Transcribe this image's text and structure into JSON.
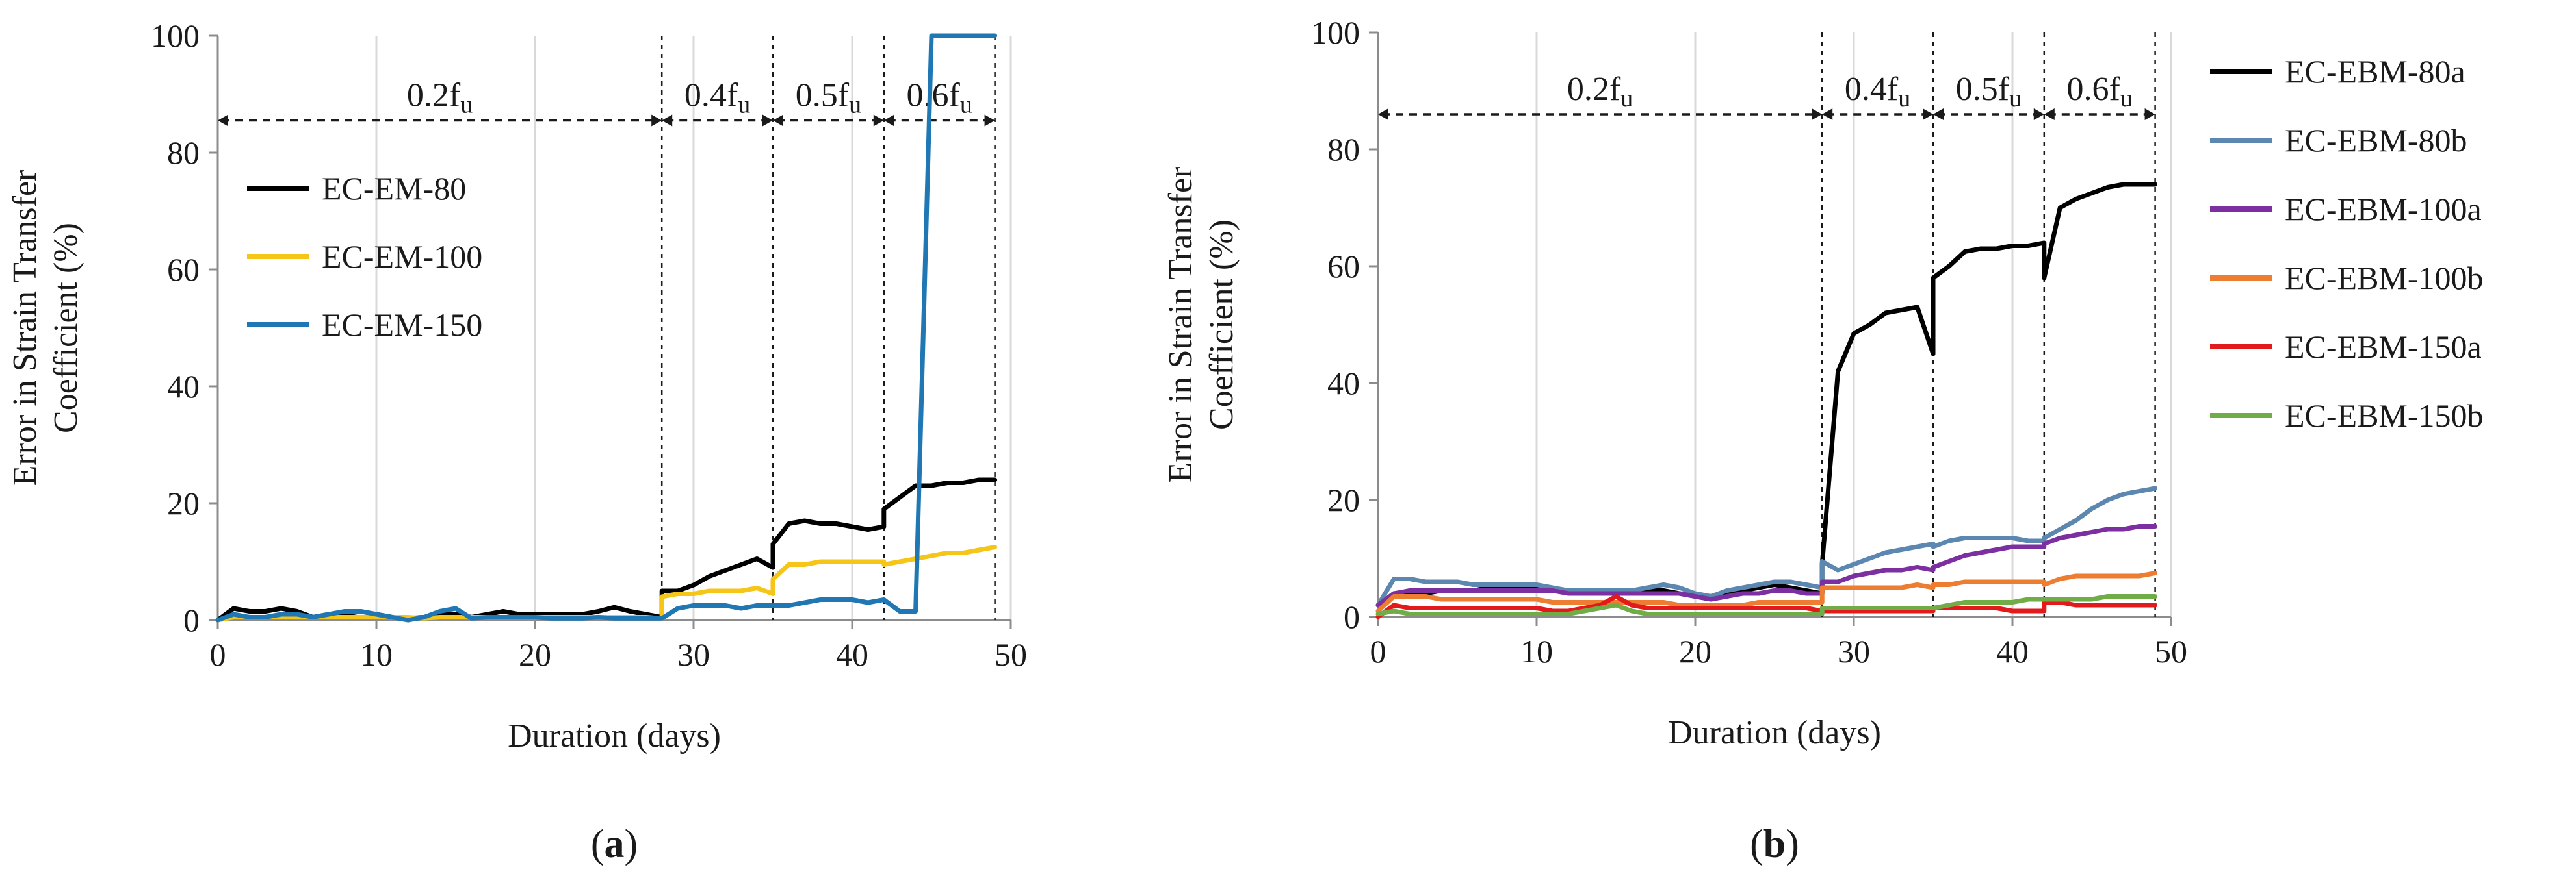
{
  "chart_data": [
    {
      "type": "line",
      "panel_label": "a",
      "xlabel": "Duration (days)",
      "ylabel_lines": [
        "Error in Strain Transfer",
        "Coefficient (%)"
      ],
      "xlim": [
        0,
        50
      ],
      "ylim": [
        0,
        100
      ],
      "xticks": [
        0,
        10,
        20,
        30,
        40,
        50
      ],
      "yticks": [
        0,
        20,
        40,
        60,
        80,
        100
      ],
      "grid": "vertical",
      "legend_position": "left",
      "phase_boundaries": [
        28,
        35,
        42,
        49
      ],
      "phases": [
        {
          "base": "0.2f",
          "sub": "u",
          "start": 0,
          "end": 28
        },
        {
          "base": "0.4f",
          "sub": "u",
          "start": 28,
          "end": 35
        },
        {
          "base": "0.5f",
          "sub": "u",
          "start": 35,
          "end": 42
        },
        {
          "base": "0.6f",
          "sub": "u",
          "start": 42,
          "end": 49
        }
      ],
      "phase_arrow_y": 85.5,
      "series": [
        {
          "name": "EC-EM-80",
          "color": "#000000",
          "x": [
            0,
            1,
            2,
            3,
            4,
            5,
            6,
            7,
            8,
            9,
            10,
            11,
            12,
            13,
            14,
            15,
            16,
            17,
            18,
            19,
            20,
            21,
            22,
            23,
            24,
            25,
            26,
            27,
            28,
            28,
            29,
            30,
            31,
            32,
            33,
            34,
            35,
            35,
            36,
            37,
            38,
            39,
            40,
            41,
            42,
            42,
            43,
            44,
            45,
            46,
            47,
            48,
            49
          ],
          "y": [
            0,
            2,
            1.5,
            1.5,
            2,
            1.5,
            0.5,
            1,
            1,
            1.5,
            1,
            0.5,
            0.3,
            0.5,
            1,
            1,
            0.5,
            1,
            1.5,
            1,
            1,
            1,
            1,
            1,
            1.5,
            2.2,
            1.5,
            1,
            0.5,
            5,
            5,
            6,
            7.5,
            8.5,
            9.5,
            10.5,
            9,
            13,
            16.5,
            17,
            16.5,
            16.5,
            16,
            15.5,
            16,
            19,
            21,
            23,
            23,
            23.5,
            23.5,
            24,
            24
          ]
        },
        {
          "name": "EC-EM-100",
          "color": "#f5c518",
          "x": [
            0,
            1,
            2,
            3,
            4,
            5,
            6,
            7,
            8,
            9,
            10,
            11,
            12,
            13,
            14,
            15,
            16,
            17,
            18,
            19,
            20,
            21,
            22,
            23,
            24,
            25,
            26,
            27,
            28,
            28,
            29,
            30,
            31,
            32,
            33,
            34,
            35,
            35,
            36,
            37,
            38,
            39,
            40,
            41,
            42,
            42,
            43,
            44,
            45,
            46,
            47,
            48,
            49
          ],
          "y": [
            0,
            0.5,
            0.5,
            0.5,
            0.5,
            0.5,
            0.5,
            0.5,
            0.5,
            0.5,
            0.5,
            0.5,
            0.5,
            0.3,
            0.5,
            0.5,
            0.5,
            0.5,
            0.5,
            0.5,
            0.5,
            0.5,
            0.5,
            0.5,
            0.5,
            0.5,
            0.5,
            0.5,
            0.3,
            4,
            4.5,
            4.5,
            5,
            5,
            5,
            5.5,
            4.5,
            7,
            9.5,
            9.5,
            10,
            10,
            10,
            10,
            10,
            9.5,
            10,
            10.5,
            11,
            11.5,
            11.5,
            12,
            12.5
          ]
        },
        {
          "name": "EC-EM-150",
          "color": "#1f77b4",
          "x": [
            0,
            1,
            2,
            3,
            4,
            5,
            6,
            7,
            8,
            9,
            10,
            11,
            12,
            13,
            14,
            15,
            16,
            17,
            18,
            19,
            20,
            21,
            22,
            23,
            24,
            25,
            26,
            27,
            28,
            29,
            30,
            31,
            32,
            33,
            34,
            35,
            36,
            37,
            38,
            39,
            40,
            41,
            42,
            43,
            44,
            45,
            46,
            47,
            48,
            49
          ],
          "y": [
            0,
            1,
            0.5,
            0.5,
            1,
            1,
            0.5,
            1,
            1.5,
            1.5,
            1,
            0.5,
            0,
            0.5,
            1.5,
            2,
            0.3,
            0.5,
            0.5,
            0.5,
            0.5,
            0.3,
            0.3,
            0.3,
            0.5,
            0.3,
            0.3,
            0.3,
            0.3,
            2,
            2.5,
            2.5,
            2.5,
            2,
            2.5,
            2.5,
            2.5,
            3,
            3.5,
            3.5,
            3.5,
            3,
            3.5,
            1.5,
            1.5,
            100,
            100,
            100,
            100,
            100
          ]
        }
      ]
    },
    {
      "type": "line",
      "panel_label": "b",
      "xlabel": "Duration (days)",
      "ylabel_lines": [
        "Error in Strain Transfer",
        "Coefficient (%)"
      ],
      "xlim": [
        0,
        50
      ],
      "ylim": [
        0,
        100
      ],
      "xticks": [
        0,
        10,
        20,
        30,
        40,
        50
      ],
      "yticks": [
        0,
        20,
        40,
        60,
        80,
        100
      ],
      "grid": "vertical",
      "legend_position": "right",
      "phase_boundaries": [
        28,
        35,
        42,
        49
      ],
      "phases": [
        {
          "base": "0.2f",
          "sub": "u",
          "start": 0,
          "end": 28
        },
        {
          "base": "0.4f",
          "sub": "u",
          "start": 28,
          "end": 35
        },
        {
          "base": "0.5f",
          "sub": "u",
          "start": 35,
          "end": 42
        },
        {
          "base": "0.6f",
          "sub": "u",
          "start": 42,
          "end": 49
        }
      ],
      "phase_arrow_y": 86,
      "series": [
        {
          "name": "EC-EBM-80a",
          "color": "#000000",
          "x": [
            0,
            1,
            2,
            3,
            4,
            5,
            6,
            7,
            8,
            9,
            10,
            11,
            12,
            13,
            14,
            15,
            16,
            17,
            18,
            19,
            20,
            21,
            22,
            23,
            24,
            25,
            26,
            27,
            28,
            28,
            29,
            30,
            31,
            32,
            33,
            34,
            35,
            35,
            36,
            37,
            38,
            39,
            40,
            41,
            42,
            42,
            43,
            44,
            45,
            46,
            47,
            48,
            49
          ],
          "y": [
            2,
            4,
            4,
            4,
            4.5,
            4.5,
            4.5,
            5,
            5,
            5,
            5,
            4.5,
            4.5,
            4.5,
            4.5,
            4,
            4.5,
            4.5,
            4.5,
            4,
            3.5,
            3,
            4,
            4.5,
            5,
            5.5,
            5,
            4.5,
            4,
            9,
            42,
            48.5,
            50,
            52,
            52.5,
            53,
            45,
            58,
            60,
            62.5,
            63,
            63,
            63.5,
            63.5,
            64,
            58,
            70,
            71.5,
            72.5,
            73.5,
            74,
            74,
            74
          ]
        },
        {
          "name": "EC-EBM-80b",
          "color": "#5b87b1",
          "x": [
            0,
            1,
            2,
            3,
            4,
            5,
            6,
            7,
            8,
            9,
            10,
            11,
            12,
            13,
            14,
            15,
            16,
            17,
            18,
            19,
            20,
            21,
            22,
            23,
            24,
            25,
            26,
            27,
            28,
            28,
            29,
            30,
            31,
            32,
            33,
            34,
            35,
            35,
            36,
            37,
            38,
            39,
            40,
            41,
            42,
            42,
            43,
            44,
            45,
            46,
            47,
            48,
            49
          ],
          "y": [
            2,
            6.5,
            6.5,
            6,
            6,
            6,
            5.5,
            5.5,
            5.5,
            5.5,
            5.5,
            5,
            4.5,
            4.5,
            4.5,
            4.5,
            4.5,
            5,
            5.5,
            5,
            4,
            3.5,
            4.5,
            5,
            5.5,
            6,
            6,
            5.5,
            5,
            9.5,
            8,
            9,
            10,
            11,
            11.5,
            12,
            12.5,
            12,
            13,
            13.5,
            13.5,
            13.5,
            13.5,
            13,
            13,
            13.5,
            15,
            16.5,
            18.5,
            20,
            21,
            21.5,
            22
          ]
        },
        {
          "name": "EC-EBM-100a",
          "color": "#7b2fa0",
          "x": [
            0,
            1,
            2,
            3,
            4,
            5,
            6,
            7,
            8,
            9,
            10,
            11,
            12,
            13,
            14,
            15,
            16,
            17,
            18,
            19,
            20,
            21,
            22,
            23,
            24,
            25,
            26,
            27,
            28,
            28,
            29,
            30,
            31,
            32,
            33,
            34,
            35,
            35,
            36,
            37,
            38,
            39,
            40,
            41,
            42,
            42,
            43,
            44,
            45,
            46,
            47,
            48,
            49
          ],
          "y": [
            2,
            4,
            4.5,
            4.5,
            4.5,
            4.5,
            4.5,
            4.5,
            4.5,
            4.5,
            4.5,
            4.5,
            4,
            4,
            4,
            4,
            4,
            4,
            4,
            4,
            3.5,
            3,
            3.5,
            4,
            4,
            4.5,
            4.5,
            4,
            4,
            6,
            6,
            7,
            7.5,
            8,
            8,
            8.5,
            8,
            8.5,
            9.5,
            10.5,
            11,
            11.5,
            12,
            12,
            12,
            12.5,
            13.5,
            14,
            14.5,
            15,
            15,
            15.5,
            15.5
          ]
        },
        {
          "name": "EC-EBM-100b",
          "color": "#ed7d31",
          "x": [
            0,
            1,
            2,
            3,
            4,
            5,
            6,
            7,
            8,
            9,
            10,
            11,
            12,
            13,
            14,
            15,
            16,
            17,
            18,
            19,
            20,
            21,
            22,
            23,
            24,
            25,
            26,
            27,
            28,
            28,
            29,
            30,
            31,
            32,
            33,
            34,
            35,
            35,
            36,
            37,
            38,
            39,
            40,
            41,
            42,
            42,
            43,
            44,
            45,
            46,
            47,
            48,
            49
          ],
          "y": [
            1,
            3.5,
            3.5,
            3.5,
            3,
            3,
            3,
            3,
            3,
            3,
            3,
            2.5,
            2.5,
            2.5,
            2.5,
            2.5,
            2.5,
            2.5,
            2.5,
            2,
            2,
            2,
            2,
            2,
            2.5,
            2.5,
            2.5,
            2.5,
            2.5,
            5,
            5,
            5,
            5,
            5,
            5,
            5.5,
            5,
            5.5,
            5.5,
            6,
            6,
            6,
            6,
            6,
            6,
            5.5,
            6.5,
            7,
            7,
            7,
            7,
            7,
            7.5
          ]
        },
        {
          "name": "EC-EBM-150a",
          "color": "#e31a1c",
          "x": [
            0,
            1,
            2,
            3,
            4,
            5,
            6,
            7,
            8,
            9,
            10,
            11,
            12,
            13,
            14,
            15,
            16,
            17,
            18,
            19,
            20,
            21,
            22,
            23,
            24,
            25,
            26,
            27,
            28,
            28,
            29,
            30,
            31,
            32,
            33,
            34,
            35,
            35,
            36,
            37,
            38,
            39,
            40,
            41,
            42,
            42,
            43,
            44,
            45,
            46,
            47,
            48,
            49
          ],
          "y": [
            0,
            2,
            1.5,
            1.5,
            1.5,
            1.5,
            1.5,
            1.5,
            1.5,
            1.5,
            1.5,
            1,
            1,
            1.5,
            2,
            3.5,
            2,
            1.5,
            1.5,
            1.5,
            1.5,
            1.5,
            1.5,
            1.5,
            1.5,
            1.5,
            1.5,
            1.5,
            1,
            1,
            1,
            1,
            1,
            1,
            1,
            1,
            1,
            1.5,
            1.5,
            1.5,
            1.5,
            1.5,
            1,
            1,
            1,
            2.5,
            2.5,
            2,
            2,
            2,
            2,
            2,
            2
          ]
        },
        {
          "name": "EC-EBM-150b",
          "color": "#70ad47",
          "x": [
            0,
            1,
            2,
            3,
            4,
            5,
            6,
            7,
            8,
            9,
            10,
            11,
            12,
            13,
            14,
            15,
            16,
            17,
            18,
            19,
            20,
            21,
            22,
            23,
            24,
            25,
            26,
            27,
            28,
            28,
            29,
            30,
            31,
            32,
            33,
            34,
            35,
            35,
            36,
            37,
            38,
            39,
            40,
            41,
            42,
            42,
            43,
            44,
            45,
            46,
            47,
            48,
            49
          ],
          "y": [
            0.5,
            1,
            0.5,
            0.5,
            0.5,
            0.5,
            0.5,
            0.5,
            0.5,
            0.5,
            0.5,
            0.5,
            0.5,
            1,
            1.5,
            2,
            1,
            0.5,
            0.5,
            0.5,
            0.5,
            0.5,
            0.5,
            0.5,
            0.5,
            0.5,
            0.5,
            0.5,
            0.5,
            1.5,
            1.5,
            1.5,
            1.5,
            1.5,
            1.5,
            1.5,
            1.5,
            1.5,
            2,
            2.5,
            2.5,
            2.5,
            2.5,
            3,
            3,
            3,
            3,
            3,
            3,
            3.5,
            3.5,
            3.5,
            3.5
          ]
        }
      ]
    }
  ]
}
